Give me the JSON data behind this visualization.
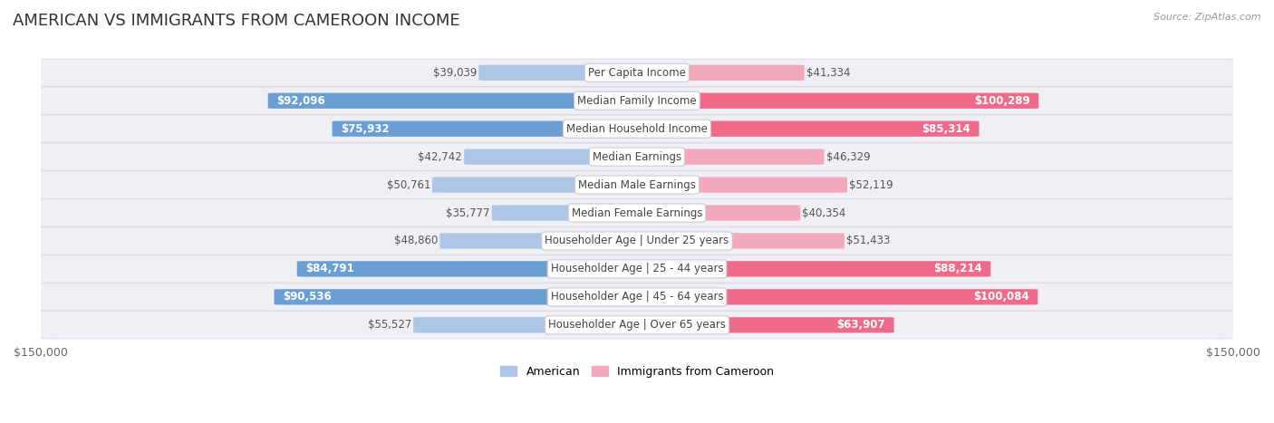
{
  "title": "AMERICAN VS IMMIGRANTS FROM CAMEROON INCOME",
  "source": "Source: ZipAtlas.com",
  "categories": [
    "Per Capita Income",
    "Median Family Income",
    "Median Household Income",
    "Median Earnings",
    "Median Male Earnings",
    "Median Female Earnings",
    "Householder Age | Under 25 years",
    "Householder Age | 25 - 44 years",
    "Householder Age | 45 - 64 years",
    "Householder Age | Over 65 years"
  ],
  "american_values": [
    39039,
    92096,
    75932,
    42742,
    50761,
    35777,
    48860,
    84791,
    90536,
    55527
  ],
  "cameroon_values": [
    41334,
    100289,
    85314,
    46329,
    52119,
    40354,
    51433,
    88214,
    100084,
    63907
  ],
  "american_labels": [
    "$39,039",
    "$92,096",
    "$75,932",
    "$42,742",
    "$50,761",
    "$35,777",
    "$48,860",
    "$84,791",
    "$90,536",
    "$55,527"
  ],
  "cameroon_labels": [
    "$41,334",
    "$100,289",
    "$85,314",
    "$46,329",
    "$52,119",
    "$40,354",
    "$51,433",
    "$88,214",
    "$100,084",
    "$63,907"
  ],
  "american_color_light": "#adc6e8",
  "american_color_dark": "#6b9fd4",
  "cameroon_color_light": "#f4a8bc",
  "cameroon_color_dark": "#f06b8a",
  "x_max": 150000,
  "x_label_left": "$150,000",
  "x_label_right": "$150,000",
  "legend_american": "American",
  "legend_cameroon": "Immigrants from Cameroon",
  "background_color": "#ffffff",
  "title_fontsize": 13,
  "label_fontsize": 8.5,
  "category_fontsize": 8.5,
  "inside_label_threshold": 62000,
  "row_bg": "#f0f0f4",
  "row_edge": "#d8d8e0"
}
